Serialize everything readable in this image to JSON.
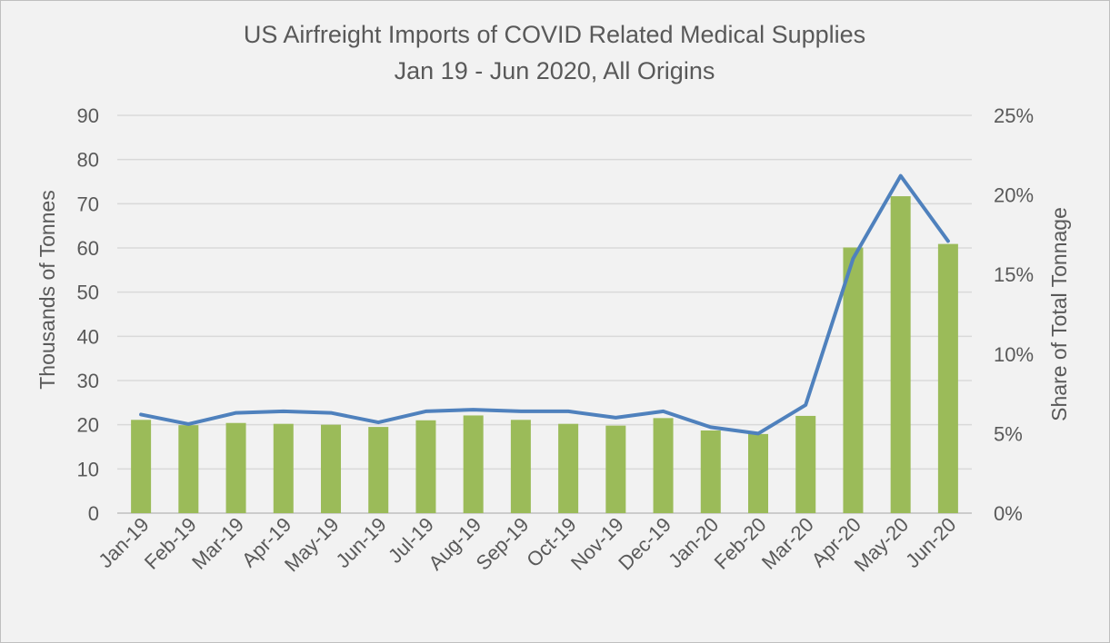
{
  "chart_data": {
    "type": "bar",
    "title": "US Airfreight Imports of COVID Related Medical Supplies",
    "subtitle": "Jan 19 - Jun 2020, All Origins",
    "ylabel": "Thousands of Tonnes",
    "y2label": "Share of Total Tonnage",
    "ylim": [
      0,
      90
    ],
    "y2lim": [
      0,
      0.25
    ],
    "yticks": [
      "0",
      "10",
      "20",
      "30",
      "40",
      "50",
      "60",
      "70",
      "80",
      "90"
    ],
    "y2ticks": [
      "0%",
      "5%",
      "10%",
      "15%",
      "20%",
      "25%"
    ],
    "grid": true,
    "legend": "none",
    "categories": [
      "Jan-19",
      "Feb-19",
      "Mar-19",
      "Apr-19",
      "May-19",
      "Jun-19",
      "Jul-19",
      "Aug-19",
      "Sep-19",
      "Oct-19",
      "Nov-19",
      "Dec-19",
      "Jan-20",
      "Feb-20",
      "Mar-20",
      "Apr-20",
      "May-20",
      "Jun-20"
    ],
    "series": [
      {
        "type": "bar",
        "axis": "left",
        "color": "#9bbb59",
        "values": [
          21.1,
          19.9,
          20.4,
          20.2,
          20.0,
          19.5,
          21.0,
          22.1,
          21.1,
          20.2,
          19.8,
          21.5,
          18.7,
          17.9,
          22.0,
          60.1,
          71.7,
          60.9
        ]
      },
      {
        "type": "line",
        "axis": "right",
        "color": "#4f81bd",
        "values": [
          0.062,
          0.056,
          0.063,
          0.064,
          0.063,
          0.057,
          0.064,
          0.065,
          0.064,
          0.064,
          0.06,
          0.064,
          0.054,
          0.05,
          0.068,
          0.16,
          0.212,
          0.171
        ]
      }
    ]
  }
}
